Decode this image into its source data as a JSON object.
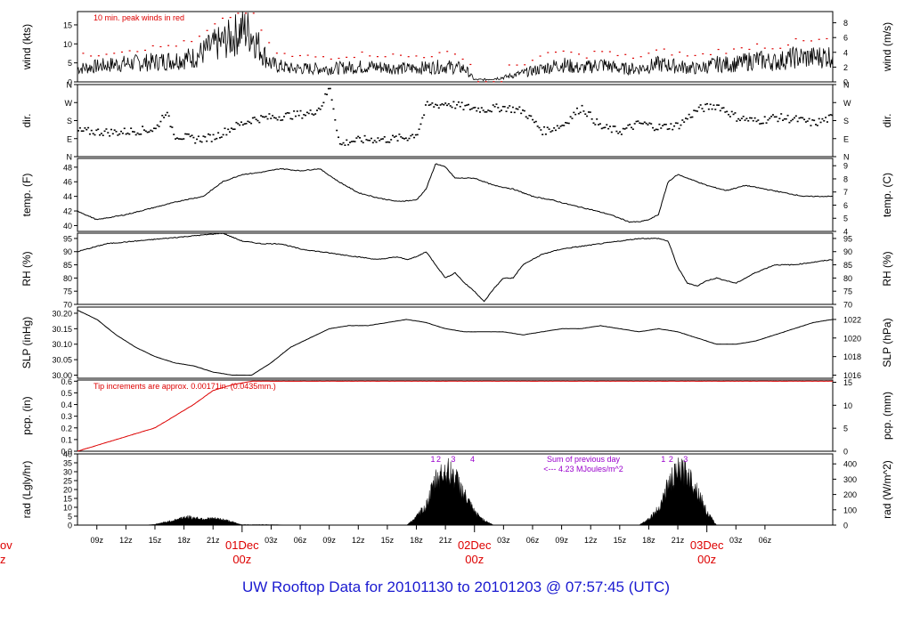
{
  "title": "UW Rooftop Data for 20101130  to  20101203 @ 07:57:45  (UTC)",
  "colors": {
    "accent": "#dd0000",
    "radiation_note": "#9900cc",
    "title": "#1a1ad0",
    "series": "#000000"
  },
  "x_axis": {
    "range_hours": [
      0,
      78
    ],
    "hour_ticks": [
      {
        "t": 2,
        "label": "09z"
      },
      {
        "t": 5,
        "label": "12z"
      },
      {
        "t": 8,
        "label": "15z"
      },
      {
        "t": 11,
        "label": "18z"
      },
      {
        "t": 14,
        "label": "21z"
      },
      {
        "t": 20,
        "label": "03z"
      },
      {
        "t": 23,
        "label": "06z"
      },
      {
        "t": 26,
        "label": "09z"
      },
      {
        "t": 29,
        "label": "12z"
      },
      {
        "t": 32,
        "label": "15z"
      },
      {
        "t": 35,
        "label": "18z"
      },
      {
        "t": 38,
        "label": "21z"
      },
      {
        "t": 44,
        "label": "03z"
      },
      {
        "t": 47,
        "label": "06z"
      },
      {
        "t": 50,
        "label": "09z"
      },
      {
        "t": 53,
        "label": "12z"
      },
      {
        "t": 56,
        "label": "15z"
      },
      {
        "t": 59,
        "label": "18z"
      },
      {
        "t": 62,
        "label": "21z"
      },
      {
        "t": 68,
        "label": "03z"
      },
      {
        "t": 71,
        "label": "06z"
      }
    ],
    "day_marks": [
      {
        "t": 17,
        "label": "01Dec",
        "sub": "00z"
      },
      {
        "t": 41,
        "label": "02Dec",
        "sub": "00z"
      },
      {
        "t": 65,
        "label": "03Dec",
        "sub": "00z"
      }
    ],
    "edge_label": {
      "label": "ov",
      "sub": "z"
    }
  },
  "panels": [
    {
      "id": "wind",
      "ylabel": "wind (kts)",
      "ylabel_right": "wind (m/s)",
      "ylim": [
        0,
        18.5
      ],
      "ticks_left": [
        "0",
        "5",
        "10",
        "15"
      ],
      "tick_vals_left": [
        0,
        5,
        10,
        15
      ],
      "ticks_right": [
        "0",
        "2",
        "4",
        "6",
        "8"
      ],
      "tick_vals_right": [
        0,
        3.89,
        7.78,
        11.66,
        15.55
      ],
      "annotation": "10 min. peak winds in red",
      "series": [
        {
          "name": "",
          "type": "noisy",
          "kind": "wind",
          "x": [
            0,
            4,
            8,
            12,
            14,
            16,
            17,
            18,
            19,
            20,
            22,
            26,
            30,
            34,
            38,
            40,
            41,
            42,
            44,
            46,
            48,
            50,
            52,
            54,
            56,
            58,
            60,
            62,
            64,
            66,
            68,
            70,
            72,
            74,
            76,
            78
          ],
          "y": [
            3,
            4,
            4.5,
            5.5,
            8,
            10,
            12,
            11,
            7,
            4,
            3,
            3,
            3.5,
            3,
            3.5,
            3,
            0.5,
            0.5,
            1,
            2,
            3,
            4,
            3,
            4,
            3,
            3,
            4,
            3.5,
            3,
            4,
            4,
            5,
            4.5,
            5.5,
            5.5,
            6
          ]
        }
      ]
    },
    {
      "id": "dir",
      "ylabel": "dir.",
      "ylabel_right": "dir.",
      "ylim": [
        0,
        360
      ],
      "ticks_left": [
        "N",
        "E",
        "S",
        "W",
        "N"
      ],
      "tick_vals_left": [
        0,
        90,
        180,
        270,
        360
      ],
      "ticks_right": [
        "N",
        "E",
        "S",
        "W",
        "N"
      ],
      "tick_vals_right": [
        0,
        90,
        180,
        270,
        360
      ],
      "series": [
        {
          "name": "",
          "type": "dots",
          "x": [
            0,
            4,
            8,
            9,
            10,
            12,
            14,
            16,
            18,
            20,
            22,
            24,
            25,
            26,
            27,
            28,
            30,
            32,
            34,
            35,
            36,
            37,
            38,
            40,
            42,
            44,
            46,
            48,
            50,
            52,
            54,
            56,
            58,
            60,
            62,
            64,
            66,
            68,
            70,
            72,
            74,
            76,
            78
          ],
          "y": [
            130,
            125,
            140,
            230,
            110,
            90,
            100,
            150,
            190,
            200,
            210,
            220,
            250,
            350,
            60,
            80,
            90,
            90,
            100,
            120,
            260,
            260,
            270,
            250,
            240,
            250,
            230,
            130,
            160,
            250,
            150,
            130,
            170,
            150,
            160,
            240,
            260,
            200,
            180,
            200,
            190,
            170,
            200
          ]
        }
      ]
    },
    {
      "id": "temp",
      "ylabel": "temp. (F)",
      "ylabel_right": "temp. (C)",
      "ylim": [
        39.2,
        49.2
      ],
      "ticks_left": [
        "40",
        "42",
        "44",
        "46",
        "48"
      ],
      "tick_vals_left": [
        40,
        42,
        44,
        46,
        48
      ],
      "ticks_right": [
        "4",
        "5",
        "6",
        "7",
        "8",
        "9"
      ],
      "tick_vals_right": [
        39.2,
        41,
        42.8,
        44.6,
        46.4,
        48.2
      ],
      "series": [
        {
          "name": "",
          "type": "line",
          "x": [
            0,
            2,
            5,
            8,
            11,
            13,
            15,
            17,
            19,
            21,
            23,
            25,
            27,
            29,
            31,
            33,
            35,
            36,
            37,
            38,
            39,
            41,
            43,
            45,
            47,
            49,
            51,
            53,
            55,
            57,
            58,
            59,
            60,
            61,
            62,
            63,
            65,
            67,
            69,
            71,
            73,
            75,
            78
          ],
          "y": [
            42,
            40.8,
            41.5,
            42.5,
            43.5,
            44,
            46,
            47,
            47.3,
            47.8,
            47.5,
            47.8,
            46,
            44.5,
            43.8,
            43.3,
            43.5,
            45,
            48.5,
            48,
            46.5,
            46.5,
            45.5,
            45,
            44,
            43.5,
            42.8,
            42.2,
            41.5,
            40.5,
            40.5,
            40.8,
            41.5,
            46,
            47,
            46.5,
            45.5,
            44.8,
            45.5,
            45,
            44.5,
            44,
            44
          ]
        }
      ]
    },
    {
      "id": "rh",
      "ylabel": "RH (%)",
      "ylabel_right": "RH (%)",
      "ylim": [
        70,
        97
      ],
      "ticks_left": [
        "70",
        "75",
        "80",
        "85",
        "90",
        "95"
      ],
      "tick_vals_left": [
        70,
        75,
        80,
        85,
        90,
        95
      ],
      "ticks_right": [
        "70",
        "75",
        "80",
        "85",
        "90",
        "95"
      ],
      "tick_vals_right": [
        70,
        75,
        80,
        85,
        90,
        95
      ],
      "series": [
        {
          "name": "",
          "type": "line",
          "x": [
            0,
            3,
            6,
            9,
            12,
            15,
            17,
            19,
            21,
            23,
            25,
            27,
            29,
            31,
            33,
            34,
            35,
            36,
            37,
            38,
            39,
            40,
            41,
            42,
            43,
            44,
            45,
            46,
            48,
            50,
            52,
            54,
            56,
            58,
            60,
            61,
            62,
            63,
            64,
            65,
            66,
            68,
            70,
            72,
            74,
            76,
            78
          ],
          "y": [
            90,
            93,
            94,
            95,
            96,
            97,
            94,
            93,
            93,
            91,
            90,
            89,
            88,
            87,
            88,
            87,
            88,
            90,
            85,
            80,
            82,
            78,
            75,
            71,
            76,
            80,
            80,
            85,
            89,
            91,
            92,
            93,
            94,
            95,
            95,
            94,
            84,
            78,
            77,
            79,
            80,
            78,
            82,
            85,
            85,
            86,
            87
          ]
        }
      ]
    },
    {
      "id": "slp",
      "ylabel": "SLP (inHg)",
      "ylabel_right": "SLP (hPa)",
      "ylim": [
        29.99,
        30.22
      ],
      "ticks_left": [
        "30.00",
        "30.05",
        "30.10",
        "30.15",
        "30.20"
      ],
      "tick_vals_left": [
        30.0,
        30.05,
        30.1,
        30.15,
        30.2
      ],
      "ticks_right": [
        "1016",
        "1018",
        "1020",
        "1022"
      ],
      "tick_vals_right": [
        30.0,
        30.06,
        30.12,
        30.18
      ],
      "series": [
        {
          "name": "",
          "type": "line",
          "x": [
            0,
            2,
            4,
            6,
            8,
            10,
            12,
            14,
            16,
            18,
            20,
            22,
            24,
            26,
            28,
            30,
            32,
            34,
            36,
            38,
            40,
            42,
            44,
            46,
            48,
            50,
            52,
            54,
            56,
            58,
            60,
            62,
            64,
            66,
            68,
            70,
            72,
            74,
            76,
            78
          ],
          "y": [
            30.21,
            30.18,
            30.13,
            30.09,
            30.06,
            30.04,
            30.03,
            30.01,
            30.0,
            30.0,
            30.04,
            30.09,
            30.12,
            30.15,
            30.16,
            30.16,
            30.17,
            30.18,
            30.17,
            30.15,
            30.14,
            30.14,
            30.14,
            30.13,
            30.14,
            30.15,
            30.15,
            30.16,
            30.15,
            30.14,
            30.15,
            30.14,
            30.12,
            30.1,
            30.1,
            30.11,
            30.13,
            30.15,
            30.17,
            30.18
          ]
        }
      ]
    },
    {
      "id": "pcp",
      "ylabel": "pcp. (in)",
      "ylabel_right": "pcp. (mm)",
      "ylim": [
        0,
        0.61
      ],
      "ticks_left": [
        "0.0",
        "0.1",
        "0.2",
        "0.3",
        "0.4",
        "0.5",
        "0.6"
      ],
      "tick_vals_left": [
        0,
        0.1,
        0.2,
        0.3,
        0.4,
        0.5,
        0.6
      ],
      "ticks_right": [
        "0",
        "5",
        "10",
        "15"
      ],
      "tick_vals_right": [
        0,
        0.197,
        0.394,
        0.591
      ],
      "annotation": "Tip increments are approx. 0.00171in. (0.0435mm.)",
      "series": [
        {
          "name": "",
          "type": "line",
          "color": "#dd0000",
          "x": [
            0,
            2,
            4,
            6,
            8,
            10,
            12,
            14,
            16,
            18,
            19,
            20,
            22,
            24,
            78
          ],
          "y": [
            0.0,
            0.05,
            0.1,
            0.15,
            0.2,
            0.3,
            0.4,
            0.52,
            0.57,
            0.6,
            0.6,
            0.6,
            0.6,
            0.6,
            0.6
          ]
        }
      ]
    },
    {
      "id": "rad",
      "ylabel": "rad (Lgly/hr)",
      "ylabel_right": "rad (W/m^2)",
      "ylim": [
        0,
        40
      ],
      "ticks_left": [
        "0",
        "5",
        "10",
        "15",
        "20",
        "25",
        "30",
        "35",
        "40"
      ],
      "tick_vals_left": [
        0,
        5,
        10,
        15,
        20,
        25,
        30,
        35,
        40
      ],
      "ticks_right": [
        "0",
        "100",
        "200",
        "300",
        "400"
      ],
      "tick_vals_right": [
        0,
        8.6,
        17.2,
        25.8,
        34.4
      ],
      "annotation_lines": [
        "Sum of previous day",
        "<--- 4.23 MJoules/m^2"
      ],
      "markers": [
        {
          "t": 36.7,
          "label": "1"
        },
        {
          "t": 37.3,
          "label": "2"
        },
        {
          "t": 38.8,
          "label": "3"
        },
        {
          "t": 40.8,
          "label": "4"
        },
        {
          "t": 60.5,
          "label": "1"
        },
        {
          "t": 61.3,
          "label": "2"
        },
        {
          "t": 62.8,
          "label": "3"
        }
      ],
      "series": [
        {
          "name": "",
          "type": "area",
          "x": [
            7,
            8,
            10,
            11,
            12,
            13,
            14,
            15,
            16,
            16.5,
            17,
            20,
            22,
            34,
            35,
            36,
            37,
            38,
            39,
            40,
            41,
            42,
            43,
            58,
            59,
            60,
            61,
            62,
            63,
            64,
            65,
            66,
            78
          ],
          "y": [
            0,
            0.5,
            3,
            5,
            4.5,
            4,
            4,
            3.5,
            2,
            1,
            0.3,
            0.3,
            0,
            0,
            5,
            12,
            28,
            34,
            30,
            18,
            8,
            3,
            0,
            0,
            4,
            10,
            25,
            33,
            32,
            22,
            8,
            0,
            0
          ]
        }
      ]
    }
  ]
}
